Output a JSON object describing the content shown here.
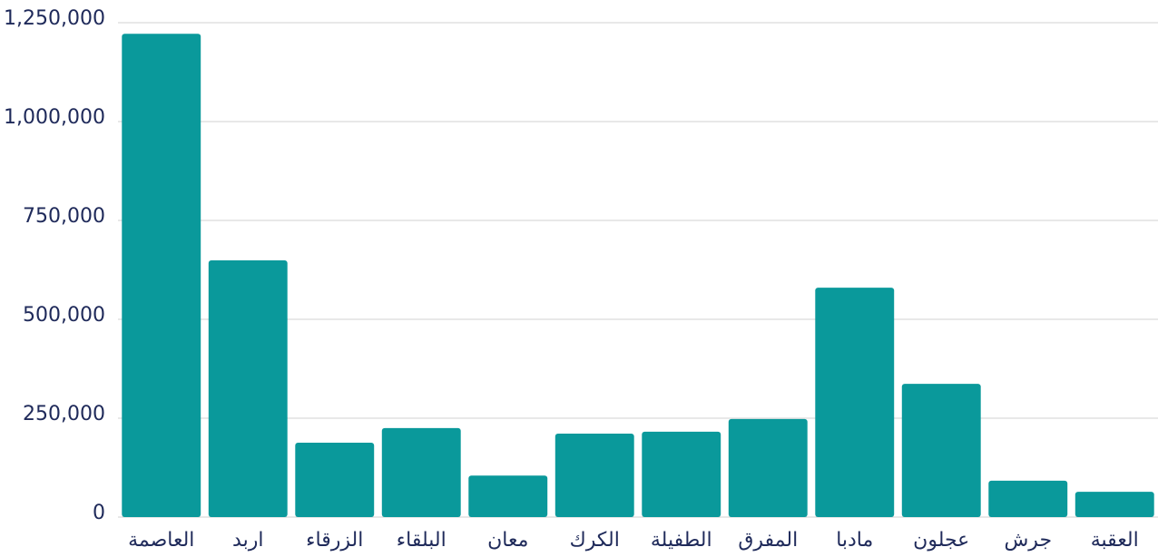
{
  "chart_data": {
    "type": "bar",
    "categories": [
      "العاصمة",
      "اربد",
      "الزرقاء",
      "البلقاء",
      "معان",
      "الكرك",
      "الطفيلة",
      "المفرق",
      "مادبا",
      "عجلون",
      "جرش",
      "العقبة"
    ],
    "values": [
      1222000,
      649000,
      188000,
      225000,
      105000,
      211000,
      216000,
      248000,
      580000,
      337000,
      92000,
      64000
    ],
    "color": "#0a999b",
    "ylim": [
      0,
      1250000
    ],
    "yticks": [
      0,
      {
        "value": 250000,
        "label": "250,000"
      },
      {
        "value": 500000,
        "label": "500,000"
      },
      {
        "value": 750000,
        "label": "750,000"
      },
      {
        "value": 1000000,
        "label": "1,000,000"
      },
      {
        "value": 1250000,
        "label": "1,250,000"
      }
    ],
    "grid": true
  }
}
